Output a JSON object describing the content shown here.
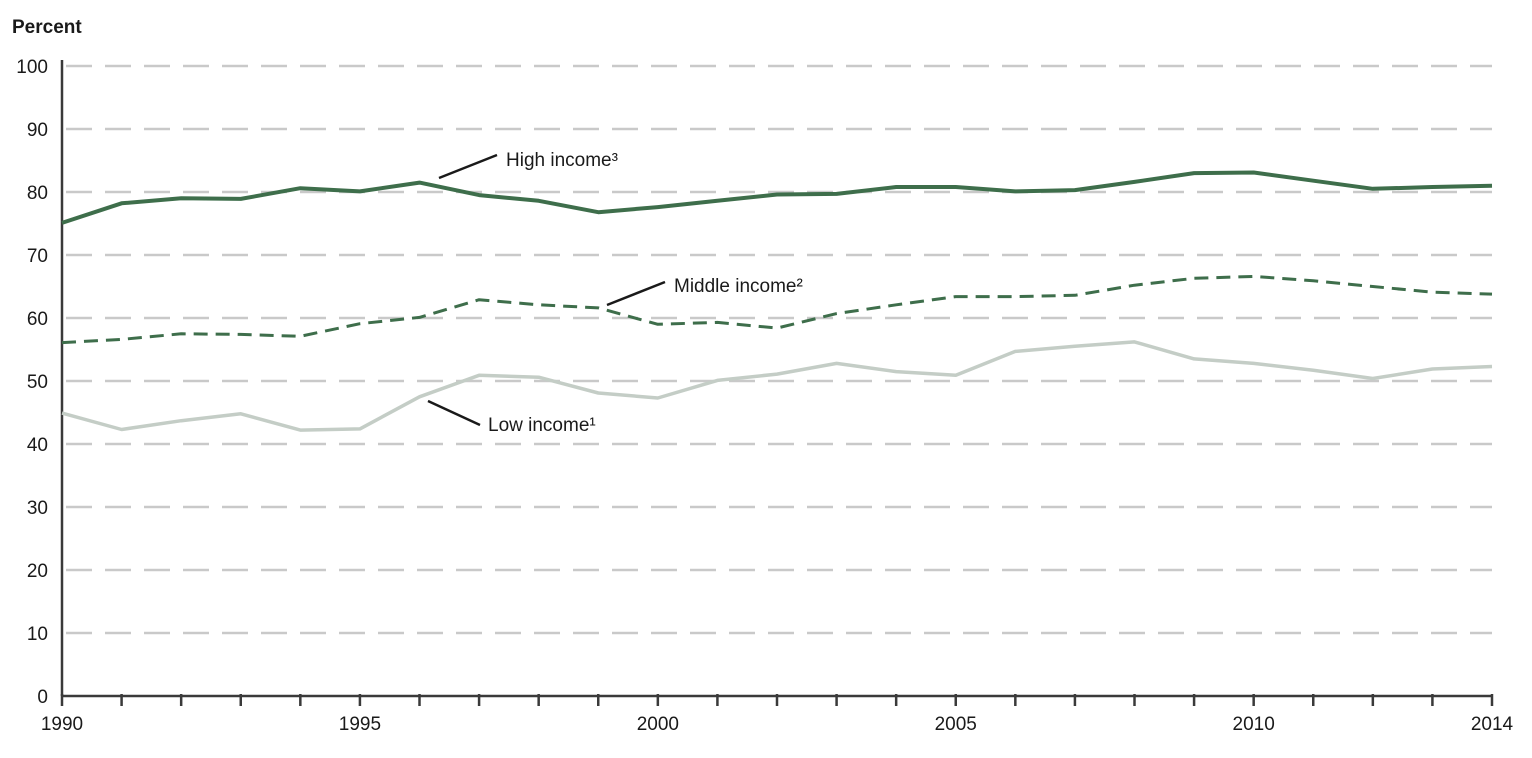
{
  "chart_data": {
    "type": "line",
    "ylabel": "Percent",
    "ylim": [
      0,
      100
    ],
    "yticks": [
      0,
      10,
      20,
      30,
      40,
      50,
      60,
      70,
      80,
      90,
      100
    ],
    "xlim": [
      1990,
      2014
    ],
    "xticks": [
      1990,
      1995,
      2000,
      2005,
      2010,
      2014
    ],
    "grid": true,
    "x": [
      1990,
      1991,
      1992,
      1993,
      1994,
      1995,
      1996,
      1997,
      1998,
      1999,
      2000,
      2001,
      2002,
      2003,
      2004,
      2005,
      2006,
      2007,
      2008,
      2009,
      2010,
      2011,
      2012,
      2013,
      2014
    ],
    "series": [
      {
        "name": "High income³",
        "color": "#3e6e4b",
        "style": "solid",
        "values": [
          75.1,
          78.2,
          79.0,
          78.9,
          80.6,
          80.1,
          81.5,
          79.5,
          78.6,
          76.8,
          77.6,
          78.6,
          79.6,
          79.7,
          80.8,
          80.8,
          80.1,
          80.3,
          81.6,
          83.0,
          83.1,
          81.8,
          80.5,
          80.8,
          81.0
        ]
      },
      {
        "name": "Middle income²",
        "color": "#3e6e4b",
        "style": "dashed",
        "values": [
          56.1,
          56.6,
          57.5,
          57.4,
          57.1,
          59.1,
          60.1,
          62.9,
          62.1,
          61.6,
          59.0,
          59.3,
          58.4,
          60.7,
          62.1,
          63.4,
          63.4,
          63.6,
          65.2,
          66.3,
          66.6,
          65.9,
          65.0,
          64.1,
          63.8
        ]
      },
      {
        "name": "Low income¹",
        "color": "#c4cdc6",
        "style": "solid",
        "values": [
          44.9,
          42.3,
          43.7,
          44.8,
          42.2,
          42.4,
          47.5,
          50.9,
          50.6,
          48.1,
          47.3,
          50.1,
          51.1,
          52.8,
          51.5,
          50.9,
          54.7,
          55.5,
          56.2,
          53.5,
          52.8,
          51.7,
          50.4,
          51.9,
          52.3
        ]
      }
    ]
  }
}
